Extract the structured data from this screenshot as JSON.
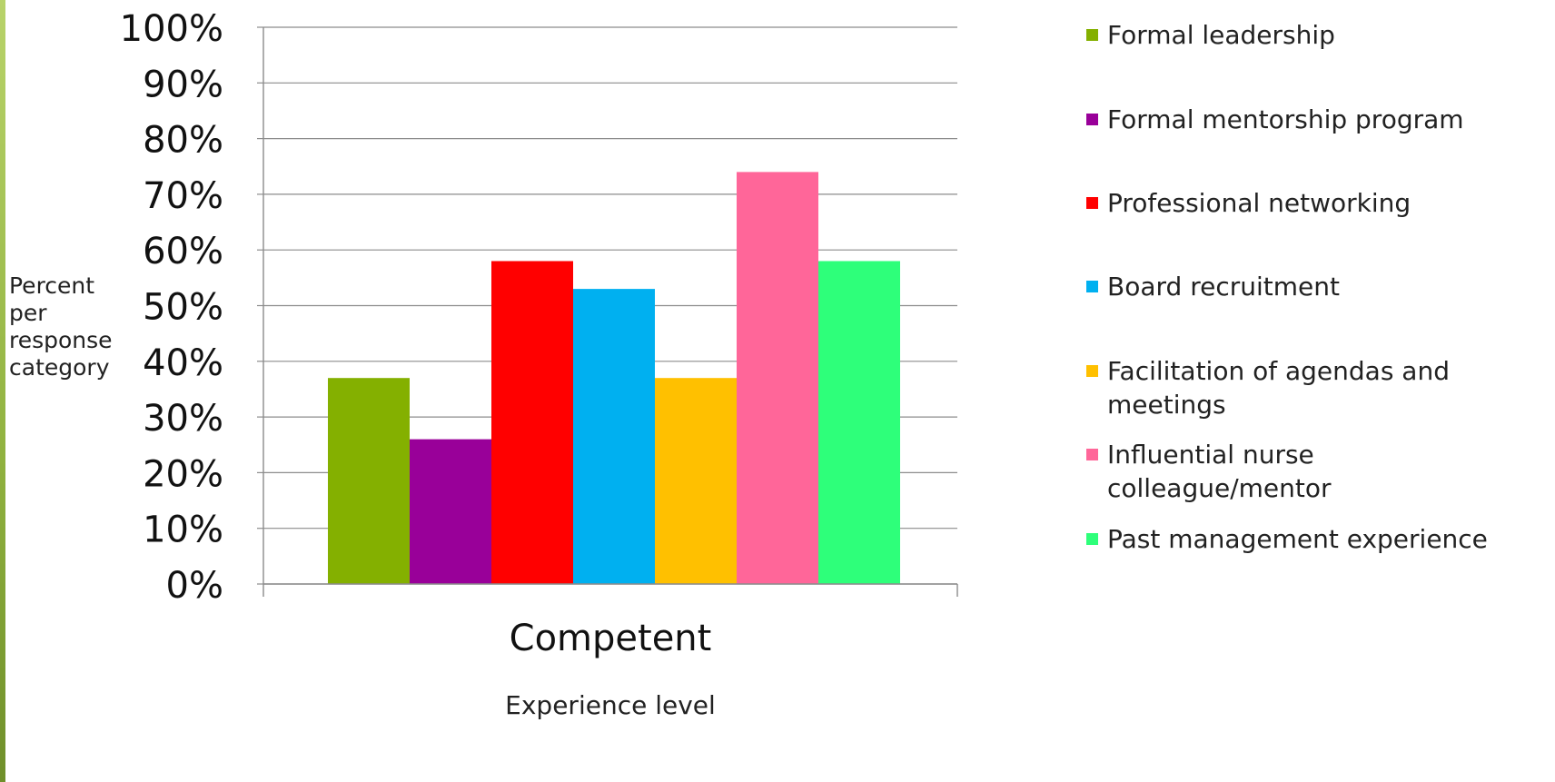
{
  "chart_data": {
    "type": "bar",
    "title": "",
    "xlabel": "Experience level",
    "ylabel": "Percent per response category",
    "ylabel_lines": [
      "Percent",
      "per",
      "response",
      "category"
    ],
    "categories": [
      "Competent"
    ],
    "ylim": [
      0,
      100
    ],
    "y_ticks": [
      "0%",
      "10%",
      "20%",
      "30%",
      "40%",
      "50%",
      "60%",
      "70%",
      "80%",
      "90%",
      "100%"
    ],
    "grid": true,
    "legend_position": "right",
    "series": [
      {
        "name": "Formal leadership",
        "values": [
          37
        ],
        "color": "#84b000"
      },
      {
        "name": "Formal mentorship program",
        "values": [
          26
        ],
        "color": "#990099"
      },
      {
        "name": "Professional networking",
        "values": [
          58
        ],
        "color": "#ff0000"
      },
      {
        "name": "Board recruitment",
        "values": [
          53
        ],
        "color": "#00b0f0"
      },
      {
        "name": "Facilitation of agendas and meetings",
        "values": [
          37
        ],
        "color": "#ffc000"
      },
      {
        "name": "Influential nurse colleague/mentor",
        "values": [
          74
        ],
        "color": "#ff6699"
      },
      {
        "name": "Past management experience",
        "values": [
          58
        ],
        "color": "#2eff7a"
      }
    ]
  }
}
